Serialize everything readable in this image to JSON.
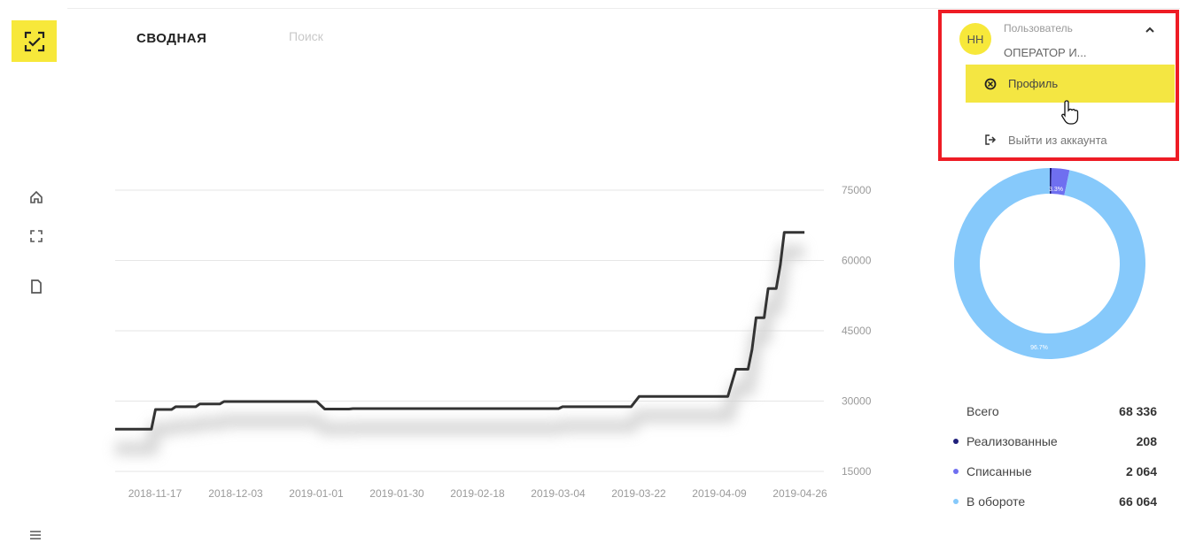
{
  "header": {
    "title": "СВОДНАЯ",
    "search_placeholder": "Поиск"
  },
  "icons": {
    "logo": "scan-frame-icon",
    "sidebar": [
      "home-icon",
      "scan-icon",
      "document-icon",
      "menu-icon"
    ]
  },
  "user_menu": {
    "initials": "НН",
    "caption": "Пользователь",
    "name": "ОПЕРАТОР И...",
    "items": [
      {
        "label": "Профиль",
        "icon": "profile-circle-icon",
        "active": true
      },
      {
        "label": "Выйти из аккаунта",
        "icon": "logout-icon",
        "active": false
      }
    ]
  },
  "donut": {
    "segments": [
      {
        "name": "Реализованные",
        "percent": 0.3,
        "color": "#1f1f7a"
      },
      {
        "name": "Списанные",
        "percent": 3.02,
        "color": "#6f6ff0"
      },
      {
        "name": "В обороте",
        "percent": 96.68,
        "color": "#86c9fb"
      }
    ],
    "label_top": "3.3%",
    "label_bottom": "96.7%"
  },
  "legend": {
    "total_label": "Всего",
    "total_value": "68 336",
    "items": [
      {
        "label": "Реализованные",
        "value": "208",
        "color": "#1f1f7a"
      },
      {
        "label": "Списанные",
        "value": "2 064",
        "color": "#6f6ff0"
      },
      {
        "label": "В обороте",
        "value": "66 064",
        "color": "#86c9fb"
      }
    ]
  },
  "chart_data": {
    "type": "line",
    "title": "",
    "xlabel": "",
    "ylabel": "",
    "ylim": [
      15000,
      75000
    ],
    "y_ticks": [
      15000,
      30000,
      45000,
      60000,
      75000
    ],
    "x_ticks": [
      "2018-11-17",
      "2018-12-03",
      "2019-01-01",
      "2019-01-30",
      "2019-02-18",
      "2019-03-04",
      "2019-03-22",
      "2019-04-09",
      "2019-04-26"
    ],
    "grid": true,
    "line_color": "#333333",
    "series": [
      {
        "name": "",
        "points": [
          [
            0.0,
            24000
          ],
          [
            0.45,
            24000
          ],
          [
            0.5,
            28200
          ],
          [
            0.7,
            28200
          ],
          [
            0.75,
            28800
          ],
          [
            1.0,
            28800
          ],
          [
            1.05,
            29400
          ],
          [
            1.3,
            29400
          ],
          [
            1.35,
            29900
          ],
          [
            2.5,
            29900
          ],
          [
            2.6,
            28300
          ],
          [
            2.9,
            28300
          ],
          [
            2.95,
            28400
          ],
          [
            5.5,
            28400
          ],
          [
            5.55,
            28800
          ],
          [
            6.4,
            28800
          ],
          [
            6.5,
            31000
          ],
          [
            7.6,
            31000
          ],
          [
            7.7,
            36800
          ],
          [
            7.85,
            36800
          ],
          [
            7.9,
            41000
          ],
          [
            7.95,
            47800
          ],
          [
            8.05,
            47800
          ],
          [
            8.1,
            54000
          ],
          [
            8.2,
            54000
          ],
          [
            8.25,
            59000
          ],
          [
            8.3,
            66000
          ],
          [
            8.55,
            66000
          ]
        ]
      }
    ]
  }
}
